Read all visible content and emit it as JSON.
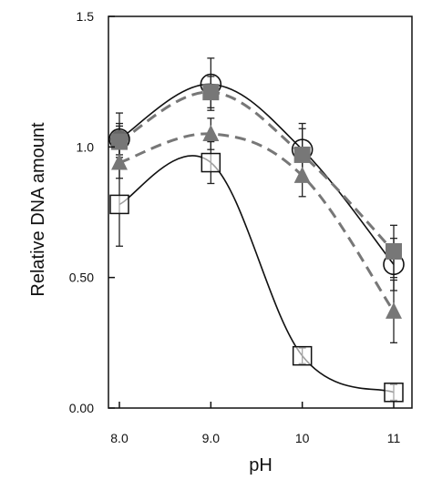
{
  "chart_data": {
    "type": "line",
    "xlabel": "pH",
    "ylabel": "Relative DNA amount",
    "x": [
      8,
      9,
      10,
      11
    ],
    "x_tick_labels": [
      "8.0",
      "9.0",
      "10",
      "11"
    ],
    "xlim": [
      7.95,
      11.15
    ],
    "ylim": [
      0,
      1.5
    ],
    "y_ticks": [
      0,
      0.5,
      1.0,
      1.5
    ],
    "y_tick_labels": [
      "0.00",
      "0.50",
      "1.0",
      "1.5"
    ],
    "grid": false,
    "legend": "none",
    "series": [
      {
        "marker": "open-circle",
        "line": "solid",
        "color": "#111111",
        "values": [
          1.03,
          1.24,
          0.99,
          0.55
        ],
        "errors": [
          0.1,
          0.1,
          0.1,
          0.1
        ]
      },
      {
        "marker": "filled-circle",
        "line": "none",
        "color": "#666666",
        "values": [
          1.03,
          null,
          null,
          null
        ],
        "errors": [
          0.06,
          null,
          null,
          null
        ]
      },
      {
        "marker": "filled-square",
        "line": "dashed",
        "color": "#777777",
        "values": [
          1.02,
          1.21,
          0.97,
          0.6
        ],
        "errors": [
          0.06,
          0.06,
          0.1,
          0.1
        ]
      },
      {
        "marker": "filled-triangle",
        "line": "dashed",
        "color": "#777777",
        "values": [
          0.94,
          1.05,
          0.89,
          0.37
        ],
        "errors": [
          0.06,
          0.06,
          0.08,
          0.12
        ]
      },
      {
        "marker": "open-square",
        "line": "solid",
        "color": "#111111",
        "values": [
          0.78,
          0.94,
          0.2,
          0.06
        ],
        "errors": [
          0.16,
          0.08,
          0.03,
          0.03
        ]
      }
    ]
  }
}
